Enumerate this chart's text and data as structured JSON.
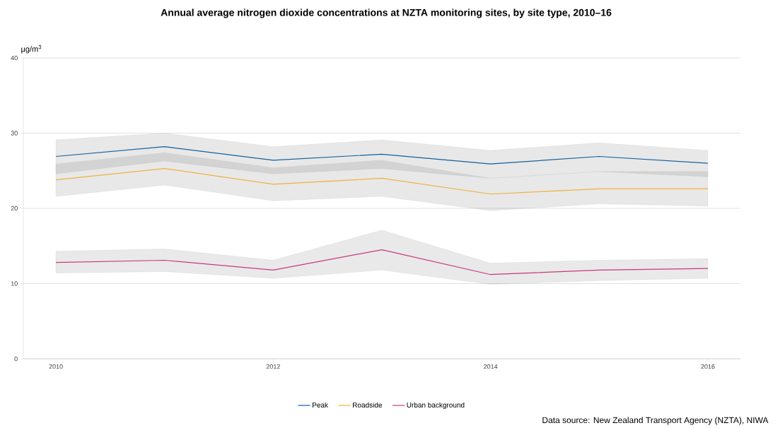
{
  "chart_data": {
    "type": "line",
    "title": "Annual average nitrogen dioxide concentrations at NZTA monitoring sites, by site type, 2010–16",
    "ylabel": "µg/m$^{3}$",
    "x": [
      2010,
      2011,
      2012,
      2013,
      2014,
      2015,
      2016
    ],
    "series": [
      {
        "name": "Peak",
        "color": "#11609f",
        "values": [
          26.9,
          28.2,
          26.4,
          27.2,
          25.9,
          26.9,
          26.0
        ],
        "lower": [
          24.6,
          26.3,
          24.6,
          25.3,
          24.0,
          24.9,
          24.2
        ],
        "upper": [
          29.1,
          30.0,
          28.2,
          29.1,
          27.7,
          28.7,
          27.7
        ]
      },
      {
        "name": "Roadside",
        "color": "#f0b040",
        "values": [
          23.8,
          25.3,
          23.2,
          24.0,
          21.9,
          22.6,
          22.6
        ],
        "lower": [
          21.6,
          23.1,
          21.0,
          21.6,
          19.7,
          20.6,
          20.3
        ],
        "upper": [
          25.9,
          27.4,
          25.4,
          26.4,
          24.0,
          24.9,
          24.9
        ]
      },
      {
        "name": "Urban background",
        "color": "#c8397a",
        "values": [
          12.8,
          13.1,
          11.8,
          14.5,
          11.2,
          11.8,
          12.0
        ],
        "lower": [
          11.4,
          11.6,
          10.7,
          11.8,
          9.9,
          10.4,
          10.7
        ],
        "upper": [
          14.3,
          14.6,
          13.1,
          17.1,
          12.7,
          13.1,
          13.3
        ]
      }
    ],
    "xlim": [
      2009.7,
      2016.3
    ],
    "ylim": [
      0,
      40
    ],
    "xticks": [
      2010,
      2012,
      2014,
      2016
    ],
    "yticks": [
      0,
      10,
      20,
      30,
      40
    ],
    "grid": "y",
    "legend": "bottom",
    "annotations": [
      "Data source: New Zealand Transport Agency (NZTA), NIWA"
    ]
  }
}
